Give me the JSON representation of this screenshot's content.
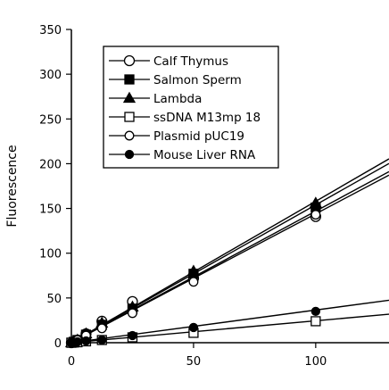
{
  "chart_data": {
    "type": "line",
    "title": "",
    "xlabel": "",
    "ylabel": "Fluorescence",
    "xlim": [
      0,
      130
    ],
    "ylim": [
      0,
      350
    ],
    "xticks": [
      0,
      50,
      100
    ],
    "yticks": [
      0,
      50,
      100,
      150,
      200,
      250,
      300,
      350
    ],
    "grid": false,
    "legend_position": "top-left",
    "series": [
      {
        "name": "Calf Thymus",
        "marker": "open-circle",
        "color": "#000000",
        "x": [
          0,
          1,
          2.5,
          6,
          12.5,
          25,
          50,
          100
        ],
        "y": [
          0,
          1,
          3,
          10,
          24,
          46,
          72,
          141
        ],
        "fit_slope": 1.47
      },
      {
        "name": "Salmon  Sperm",
        "marker": "filled-square",
        "color": "#000000",
        "x": [
          0,
          1,
          2.5,
          6,
          12.5,
          25,
          50,
          100
        ],
        "y": [
          0,
          1,
          3,
          9,
          20,
          38,
          77,
          151
        ],
        "fit_slope": 1.54
      },
      {
        "name": "Lambda",
        "marker": "filled-triangle",
        "color": "#000000",
        "x": [
          0,
          1,
          2.5,
          6,
          12.5,
          25,
          50,
          100
        ],
        "y": [
          0,
          1,
          3,
          10,
          22,
          40,
          80,
          156
        ],
        "fit_slope": 1.58
      },
      {
        "name": "ssDNA M13mp 18",
        "marker": "open-square",
        "color": "#000000",
        "x": [
          0,
          1,
          2.5,
          6,
          12.5,
          25,
          50,
          100
        ],
        "y": [
          0,
          0.2,
          0.5,
          1.5,
          3,
          6,
          11,
          24
        ],
        "fit_slope": 0.245
      },
      {
        "name": "Plasmid pUC19",
        "marker": "open-circle-small",
        "color": "#000000",
        "x": [
          0,
          1,
          2.5,
          6,
          12.5,
          25,
          50,
          100
        ],
        "y": [
          0,
          1,
          3,
          8,
          16,
          33,
          68,
          143
        ],
        "fit_slope": 1.44
      },
      {
        "name": "Mouse Liver RNA",
        "marker": "filled-circle",
        "color": "#000000",
        "x": [
          0,
          1,
          2.5,
          6,
          12.5,
          25,
          50,
          100
        ],
        "y": [
          0,
          0.5,
          1,
          2,
          3,
          8,
          17,
          35
        ],
        "fit_slope": 0.365
      }
    ]
  }
}
